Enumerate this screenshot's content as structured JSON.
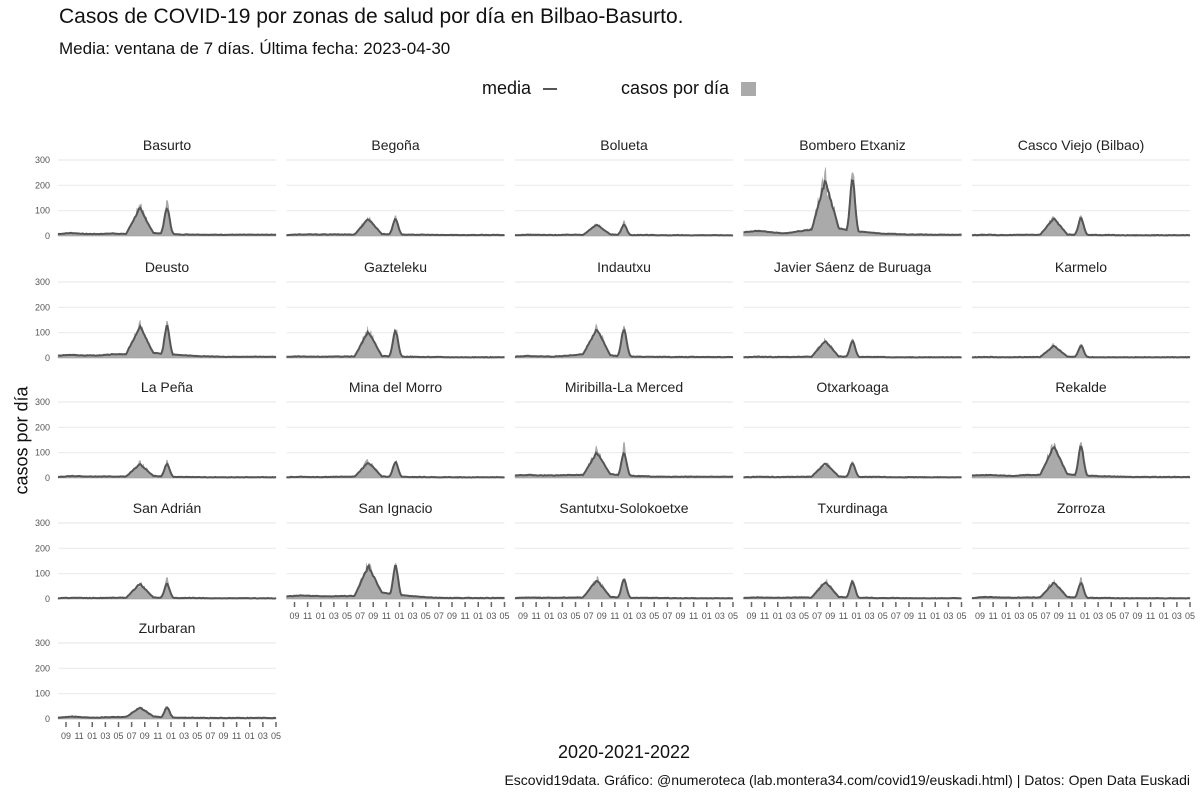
{
  "title": "Casos de COVID-19 por zonas de salud por día en Bilbao-Basurto.",
  "subtitle": "Media: ventana de 7 días. Última fecha: 2023-04-30",
  "legend": {
    "line_label": "media",
    "bar_label": "casos por día"
  },
  "ylabel": "casos por día",
  "xlabel": "2020-2021-2022",
  "caption": "Escovid19data. Gráfico: @numeroteca (lab.montera34.com/covid19/euskadi.html) | Datos: Open Data Euskadi",
  "colors": {
    "line": "#555555",
    "bars": "#aaaaaa",
    "grid": "#ebebeb"
  },
  "chart_data": {
    "type": "area",
    "facets": [
      "Basurto",
      "Begoña",
      "Bolueta",
      "Bombero Etxaniz",
      "Casco Viejo (Bilbao)",
      "Deusto",
      "Gazteleku",
      "Indautxu",
      "Javier Sáenz de Buruaga",
      "Karmelo",
      "La Peña",
      "Mina del Morro",
      "Miribilla-La Merced",
      "Otxarkoaga",
      "Rekalde",
      "San Adrián",
      "San Ignacio",
      "Santutxu-Solokoetxe",
      "Txurdinaga",
      "Zorroza",
      "Zurbaran"
    ],
    "ylim": [
      0,
      300
    ],
    "y_ticks": [
      0,
      100,
      200,
      300
    ],
    "x_ticks": [
      "09",
      "11",
      "01",
      "03",
      "05",
      "07",
      "09",
      "11",
      "01",
      "03",
      "05",
      "07",
      "09",
      "11",
      "01",
      "03",
      "05"
    ],
    "grid": true,
    "legend_position": "top",
    "series": [
      {
        "facet": "Basurto",
        "peak_mean": 110,
        "peak_max": 140,
        "baseline": 5,
        "wave_mean": [
          8,
          12,
          8,
          8,
          10,
          8,
          110,
          12,
          8,
          6,
          6,
          5,
          5,
          5,
          5,
          5,
          5
        ]
      },
      {
        "facet": "Begoña",
        "peak_mean": 68,
        "peak_max": 80,
        "baseline": 4,
        "wave_mean": [
          4,
          6,
          6,
          6,
          6,
          6,
          68,
          8,
          6,
          5,
          5,
          4,
          4,
          4,
          4,
          4,
          4
        ]
      },
      {
        "facet": "Bolueta",
        "peak_mean": 45,
        "peak_max": 60,
        "baseline": 3,
        "wave_mean": [
          3,
          5,
          4,
          4,
          5,
          5,
          45,
          6,
          4,
          4,
          4,
          3,
          3,
          3,
          3,
          3,
          3
        ]
      },
      {
        "facet": "Bombero Etxaniz",
        "peak_mean": 220,
        "peak_max": 250,
        "baseline": 5,
        "wave_mean": [
          15,
          20,
          15,
          10,
          18,
          25,
          220,
          30,
          20,
          15,
          10,
          8,
          6,
          6,
          5,
          5,
          5
        ]
      },
      {
        "facet": "Casco Viejo (Bilbao)",
        "peak_mean": 70,
        "peak_max": 80,
        "baseline": 3,
        "wave_mean": [
          3,
          5,
          4,
          4,
          5,
          5,
          70,
          6,
          4,
          4,
          4,
          3,
          3,
          3,
          3,
          3,
          3
        ]
      },
      {
        "facet": "Deusto",
        "peak_mean": 125,
        "peak_max": 145,
        "baseline": 5,
        "wave_mean": [
          10,
          12,
          10,
          10,
          15,
          15,
          125,
          20,
          15,
          12,
          8,
          6,
          5,
          5,
          5,
          5,
          5
        ]
      },
      {
        "facet": "Gazteleku",
        "peak_mean": 105,
        "peak_max": 110,
        "baseline": 3,
        "wave_mean": [
          5,
          6,
          5,
          5,
          6,
          6,
          105,
          8,
          5,
          5,
          4,
          4,
          3,
          3,
          3,
          3,
          3
        ]
      },
      {
        "facet": "Indautxu",
        "peak_mean": 115,
        "peak_max": 125,
        "baseline": 4,
        "wave_mean": [
          6,
          8,
          6,
          6,
          10,
          15,
          115,
          10,
          6,
          5,
          5,
          4,
          4,
          4,
          4,
          4,
          4
        ]
      },
      {
        "facet": "Javier Sáenz de Buruaga",
        "peak_mean": 68,
        "peak_max": 75,
        "baseline": 3,
        "wave_mean": [
          3,
          5,
          4,
          4,
          5,
          5,
          68,
          6,
          4,
          4,
          4,
          3,
          3,
          3,
          3,
          3,
          3
        ]
      },
      {
        "facet": "Karmelo",
        "peak_mean": 48,
        "peak_max": 55,
        "baseline": 3,
        "wave_mean": [
          3,
          4,
          3,
          3,
          4,
          4,
          48,
          5,
          3,
          3,
          3,
          3,
          3,
          3,
          3,
          3,
          3
        ]
      },
      {
        "facet": "La Peña",
        "peak_mean": 55,
        "peak_max": 70,
        "baseline": 3,
        "wave_mean": [
          4,
          8,
          6,
          6,
          6,
          6,
          55,
          8,
          5,
          4,
          4,
          3,
          3,
          3,
          3,
          3,
          3
        ]
      },
      {
        "facet": "Mina del Morro",
        "peak_mean": 62,
        "peak_max": 65,
        "baseline": 3,
        "wave_mean": [
          3,
          5,
          4,
          4,
          5,
          5,
          62,
          6,
          4,
          4,
          4,
          3,
          3,
          3,
          3,
          3,
          3
        ]
      },
      {
        "facet": "Miribilla-La Merced",
        "peak_mean": 100,
        "peak_max": 140,
        "baseline": 5,
        "wave_mean": [
          10,
          12,
          10,
          10,
          12,
          12,
          100,
          15,
          10,
          8,
          6,
          5,
          5,
          5,
          5,
          5,
          5
        ]
      },
      {
        "facet": "Otxarkoaga",
        "peak_mean": 58,
        "peak_max": 65,
        "baseline": 3,
        "wave_mean": [
          3,
          5,
          4,
          4,
          5,
          5,
          58,
          6,
          4,
          4,
          4,
          3,
          3,
          3,
          3,
          3,
          3
        ]
      },
      {
        "facet": "Rekalde",
        "peak_mean": 125,
        "peak_max": 140,
        "baseline": 4,
        "wave_mean": [
          10,
          12,
          10,
          8,
          12,
          12,
          125,
          15,
          10,
          8,
          6,
          5,
          4,
          4,
          4,
          4,
          4
        ]
      },
      {
        "facet": "San Adrián",
        "peak_mean": 60,
        "peak_max": 85,
        "baseline": 3,
        "wave_mean": [
          3,
          5,
          4,
          4,
          5,
          5,
          60,
          6,
          4,
          4,
          4,
          3,
          3,
          3,
          3,
          3,
          3
        ]
      },
      {
        "facet": "San Ignacio",
        "peak_mean": 130,
        "peak_max": 140,
        "baseline": 4,
        "wave_mean": [
          10,
          14,
          12,
          10,
          12,
          12,
          130,
          25,
          18,
          12,
          8,
          5,
          4,
          4,
          4,
          4,
          4
        ]
      },
      {
        "facet": "Santutxu-Solokoetxe",
        "peak_mean": 75,
        "peak_max": 80,
        "baseline": 3,
        "wave_mean": [
          4,
          6,
          5,
          5,
          6,
          6,
          75,
          8,
          5,
          5,
          4,
          4,
          3,
          3,
          3,
          3,
          3
        ]
      },
      {
        "facet": "Txurdinaga",
        "peak_mean": 68,
        "peak_max": 75,
        "baseline": 3,
        "wave_mean": [
          4,
          6,
          5,
          5,
          6,
          6,
          68,
          8,
          5,
          5,
          4,
          4,
          3,
          3,
          3,
          3,
          3
        ]
      },
      {
        "facet": "Zorroza",
        "peak_mean": 65,
        "peak_max": 85,
        "baseline": 3,
        "wave_mean": [
          4,
          8,
          6,
          5,
          6,
          6,
          65,
          8,
          5,
          4,
          4,
          3,
          3,
          3,
          3,
          3,
          3
        ]
      },
      {
        "facet": "Zurbaran",
        "peak_mean": 45,
        "peak_max": 50,
        "baseline": 4,
        "wave_mean": [
          5,
          10,
          6,
          6,
          8,
          8,
          45,
          10,
          6,
          5,
          5,
          4,
          4,
          4,
          4,
          4,
          4
        ]
      }
    ]
  }
}
